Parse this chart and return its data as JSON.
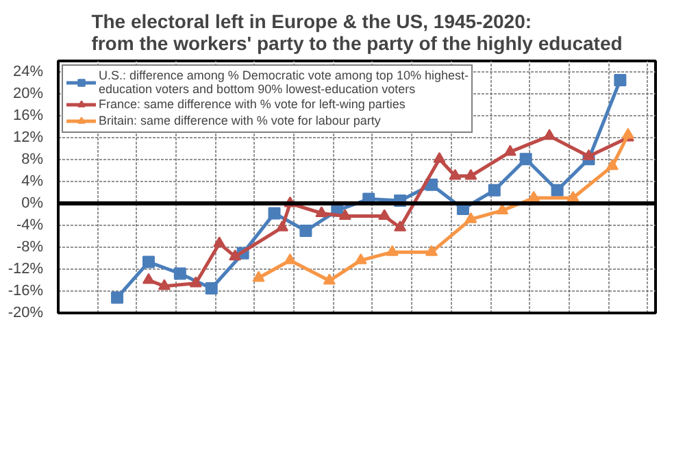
{
  "chart_data": {
    "type": "line",
    "title": "The electoral left in Europe & the US, 1945-2020:\nfrom the workers' party to the party of the highly educated",
    "categories": [
      null,
      null,
      null,
      null,
      null,
      null,
      null,
      null,
      null,
      null,
      null,
      null,
      null,
      null,
      null,
      null,
      null,
      null,
      null,
      null,
      null,
      null,
      null,
      null,
      null,
      null,
      null,
      null,
      null,
      null,
      null,
      null,
      null,
      null,
      null,
      null,
      null,
      null,
      null,
      null,
      null,
      null,
      null,
      null,
      null,
      null,
      null,
      null,
      null,
      null,
      null,
      null,
      null,
      null,
      null,
      null,
      null,
      null,
      null,
      null,
      null,
      null,
      null,
      null,
      null,
      null,
      null,
      null,
      null,
      null,
      null,
      null,
      null,
      null,
      null,
      null
    ],
    "ylim": [
      -20,
      26
    ],
    "yticks": [
      {
        "value": -20,
        "label": "-20%"
      },
      {
        "value": -16,
        "label": "-16%"
      },
      {
        "value": -12,
        "label": "-12%"
      },
      {
        "value": -8,
        "label": "-8%"
      },
      {
        "value": -4,
        "label": "-4%"
      },
      {
        "value": 0,
        "label": "0%"
      },
      {
        "value": 4,
        "label": "4%"
      },
      {
        "value": 8,
        "label": "8%"
      },
      {
        "value": 12,
        "label": "12%"
      },
      {
        "value": 16,
        "label": "16%"
      },
      {
        "value": 20,
        "label": "20%"
      },
      {
        "value": 24,
        "label": "24%"
      }
    ],
    "tick_labels": "y",
    "grid": true,
    "legend": "top left",
    "marker": "triangle",
    "ref_lines": [
      {
        "axis": "y",
        "value": 0,
        "color": "#000000"
      }
    ],
    "series": [
      {
        "name": "U.S.: difference among % Democratic vote among top 10% highest-education voters and bottom 90% lowest-education voters",
        "color": "#4a7ebb",
        "marker": "square",
        "values": [
          null,
          null,
          null,
          null,
          null,
          null,
          null,
          -17.2,
          null,
          null,
          null,
          -10.7,
          null,
          null,
          null,
          -12.8,
          null,
          null,
          null,
          -15.5,
          null,
          null,
          null,
          -9.1,
          null,
          null,
          null,
          -1.8,
          null,
          null,
          null,
          -5.0,
          null,
          null,
          null,
          -1.3,
          null,
          null,
          null,
          0.8,
          null,
          null,
          null,
          0.5,
          null,
          null,
          null,
          3.4,
          null,
          null,
          null,
          -1.0,
          null,
          null,
          null,
          2.4,
          null,
          null,
          null,
          8.1,
          null,
          null,
          null,
          2.4,
          null,
          null,
          null,
          8.1,
          null,
          null,
          null,
          22.5,
          null,
          null,
          null,
          null
        ]
      },
      {
        "name": "France: same difference with % vote for left-wing parties",
        "color": "#be4b48",
        "values": [
          null,
          null,
          null,
          null,
          null,
          null,
          null,
          null,
          null,
          null,
          null,
          -14.0,
          null,
          -15.1,
          null,
          null,
          null,
          -14.6,
          null,
          null,
          -7.3,
          null,
          -9.7,
          null,
          null,
          null,
          null,
          null,
          -4.4,
          0,
          null,
          null,
          null,
          -1.8,
          null,
          null,
          -2.3,
          null,
          null,
          null,
          null,
          -2.3,
          null,
          -4.4,
          null,
          null,
          null,
          null,
          8.1,
          null,
          5.0,
          null,
          5.0,
          null,
          null,
          null,
          null,
          9.4,
          null,
          null,
          null,
          null,
          12.3,
          null,
          null,
          null,
          null,
          8.6,
          null,
          null,
          null,
          null,
          12.0,
          null,
          null,
          null
        ]
      },
      {
        "name": "Britain: same difference with % vote for labour party",
        "color": "#f79646",
        "values": [
          null,
          null,
          null,
          null,
          null,
          null,
          null,
          null,
          null,
          null,
          null,
          null,
          null,
          null,
          null,
          null,
          null,
          null,
          null,
          null,
          null,
          null,
          null,
          null,
          null,
          -13.6,
          null,
          null,
          null,
          -10.4,
          null,
          null,
          null,
          null,
          -14.1,
          null,
          null,
          null,
          -10.4,
          null,
          null,
          null,
          -8.9,
          null,
          null,
          null,
          null,
          -8.9,
          null,
          null,
          null,
          null,
          -2.9,
          null,
          null,
          null,
          -1.3,
          null,
          null,
          null,
          1.0,
          null,
          null,
          null,
          null,
          1.0,
          null,
          null,
          null,
          null,
          6.8,
          null,
          12.5,
          null,
          null,
          null
        ]
      }
    ]
  }
}
